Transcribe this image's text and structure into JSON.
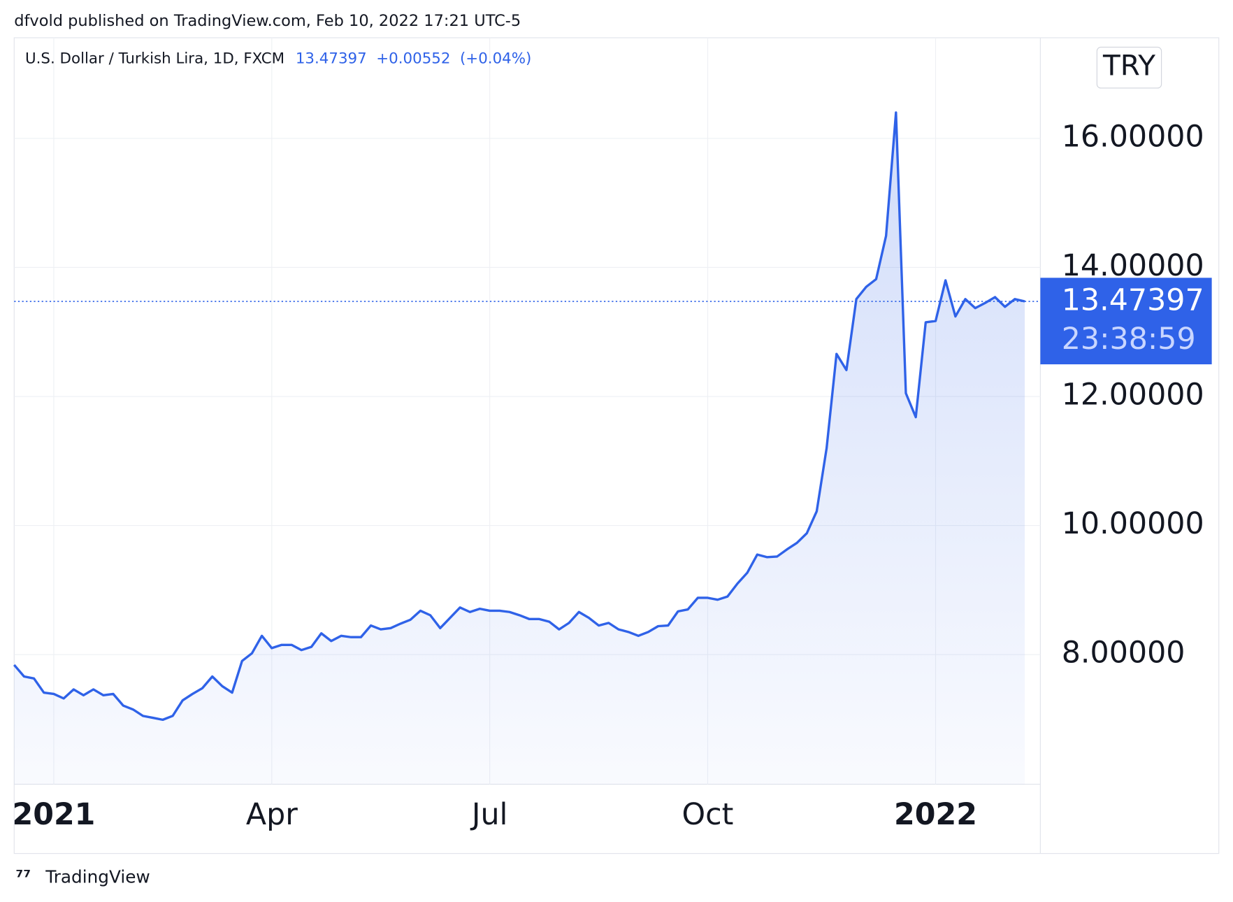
{
  "chart_data": {
    "type": "line",
    "published": "dfvold published on TradingView.com, Feb 10, 2022 17:21 UTC-5",
    "symbol": "U.S. Dollar / Turkish Lira, 1D, FXCM",
    "last": 13.47397,
    "change": "+0.00552",
    "change_pct": "(+0.04%)",
    "currency": "TRY",
    "countdown": "23:38:59",
    "brand": "TradingView",
    "color": "#2f62e8",
    "grid": true,
    "ylim": [
      5.99,
      17.56
    ],
    "yticks": [
      {
        "value": 8,
        "label": "8.00000"
      },
      {
        "value": 10,
        "label": "10.00000"
      },
      {
        "value": 12,
        "label": "12.00000"
      },
      {
        "value": 14,
        "label": "14.00000"
      },
      {
        "value": 16,
        "label": "16.00000"
      }
    ],
    "categories": [
      null,
      null,
      null,
      null,
      "2021",
      null,
      null,
      null,
      null,
      null,
      null,
      null,
      null,
      null,
      null,
      null,
      null,
      null,
      null,
      null,
      null,
      null,
      null,
      null,
      null,
      null,
      "Apr",
      null,
      null,
      null,
      null,
      null,
      null,
      null,
      null,
      null,
      null,
      null,
      null,
      null,
      null,
      null,
      null,
      null,
      null,
      null,
      null,
      null,
      "Jul",
      null,
      null,
      null,
      null,
      null,
      null,
      null,
      null,
      null,
      null,
      null,
      null,
      null,
      null,
      null,
      null,
      null,
      null,
      null,
      null,
      null,
      "Oct",
      null,
      null,
      null,
      null,
      null,
      null,
      null,
      null,
      null,
      null,
      null,
      null,
      null,
      null,
      null,
      null,
      null,
      null,
      null,
      null,
      null,
      null,
      "2022",
      null,
      null,
      null,
      null,
      null,
      null,
      null,
      null,
      null
    ],
    "values": [
      7.84,
      7.66,
      7.63,
      7.41,
      7.39,
      7.32,
      7.46,
      7.37,
      7.46,
      7.37,
      7.39,
      7.21,
      7.15,
      7.05,
      7.02,
      6.99,
      7.05,
      7.29,
      7.39,
      7.48,
      7.66,
      7.51,
      7.41,
      7.9,
      8.02,
      8.29,
      8.1,
      8.15,
      8.15,
      8.07,
      8.12,
      8.33,
      8.21,
      8.29,
      8.27,
      8.27,
      8.45,
      8.39,
      8.41,
      8.48,
      8.54,
      8.68,
      8.61,
      8.41,
      8.57,
      8.73,
      8.66,
      8.71,
      8.68,
      8.68,
      8.66,
      8.61,
      8.55,
      8.55,
      8.51,
      8.39,
      8.49,
      8.66,
      8.57,
      8.45,
      8.49,
      8.39,
      8.35,
      8.29,
      8.35,
      8.44,
      8.45,
      8.67,
      8.7,
      8.88,
      8.88,
      8.85,
      8.9,
      9.1,
      9.27,
      9.55,
      9.51,
      9.52,
      9.63,
      9.73,
      9.88,
      10.22,
      11.2,
      12.66,
      12.41,
      13.51,
      13.7,
      13.82,
      14.49,
      16.4,
      12.05,
      11.68,
      13.15,
      13.17,
      13.8,
      13.24,
      13.51,
      13.37,
      13.45,
      13.54,
      13.39,
      13.51,
      13.47397
    ]
  }
}
